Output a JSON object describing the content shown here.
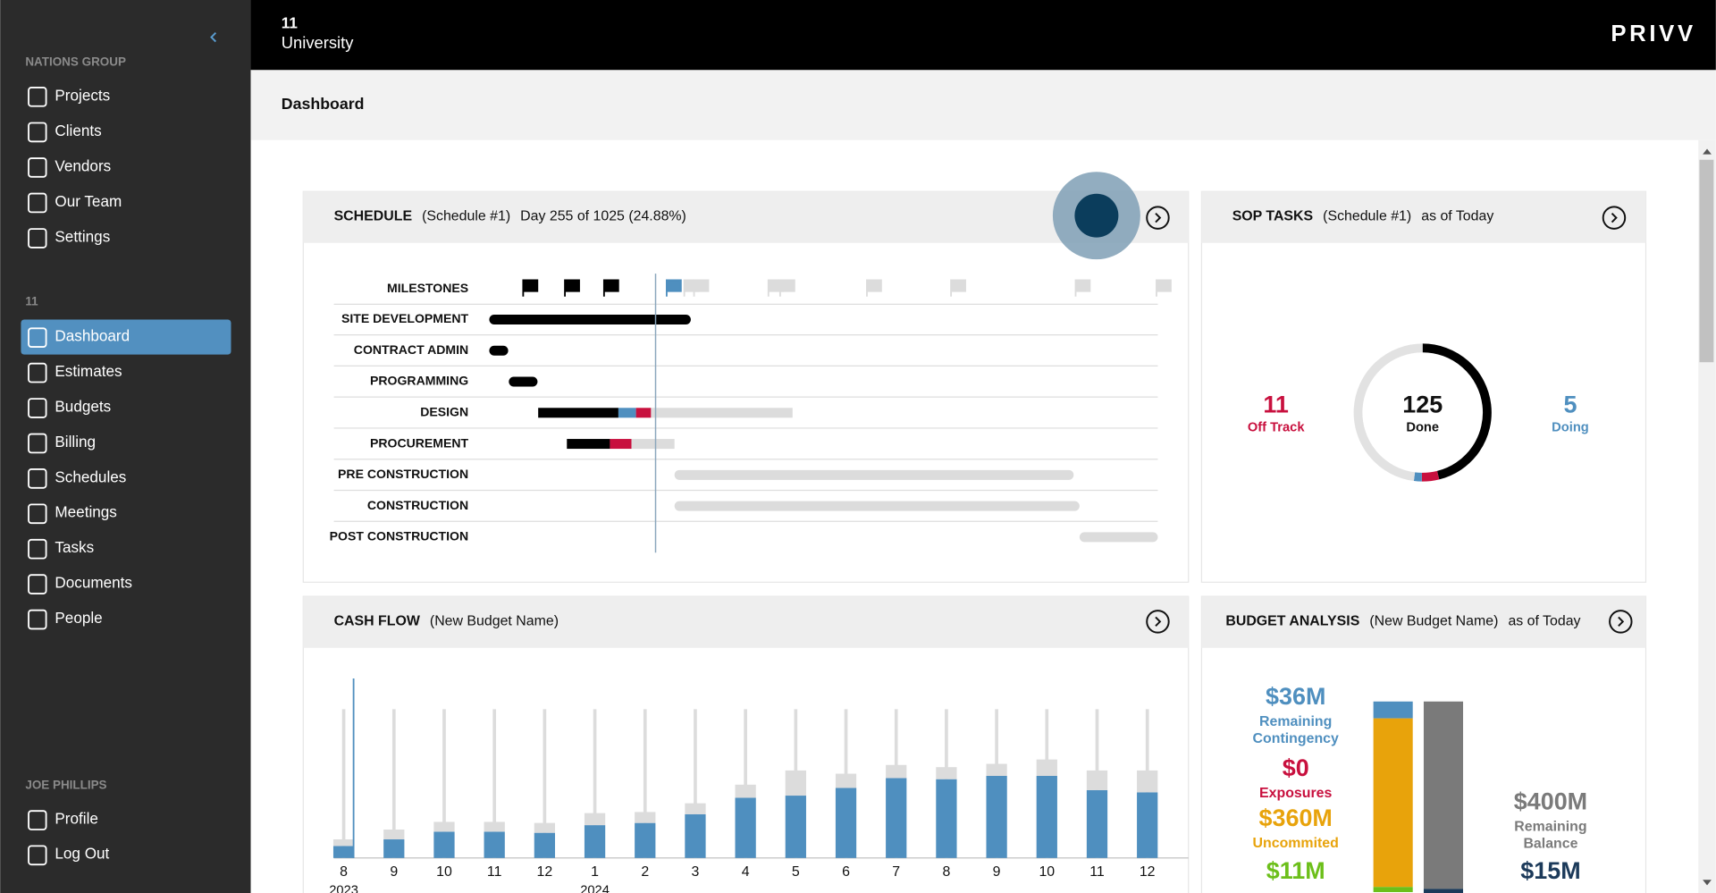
{
  "sidebar": {
    "org": "NATIONS GROUP",
    "org_items": [
      "Projects",
      "Clients",
      "Vendors",
      "Our Team",
      "Settings"
    ],
    "project": "11",
    "project_items": [
      "Dashboard",
      "Estimates",
      "Budgets",
      "Billing",
      "Schedules",
      "Meetings",
      "Tasks",
      "Documents",
      "People"
    ],
    "active_index": 0,
    "user": "JOE PHILLIPS",
    "user_items": [
      "Profile",
      "Log Out"
    ]
  },
  "header": {
    "project_number": "11",
    "project_name": "University",
    "brand": "PRIVV"
  },
  "page_title": "Dashboard",
  "schedule": {
    "title": "SCHEDULE",
    "subtitle": "(Schedule #1)",
    "status": "Day 255 of 1025 (24.88%)",
    "today_day": 255,
    "total_days": 1025,
    "colors": {
      "done": "#000000",
      "doing": "#4f8fbf",
      "off": "#c8103e",
      "todo": "#dcdcdc"
    },
    "milestone_label": "MILESTONES",
    "milestones": [
      {
        "day": 52,
        "status": "done"
      },
      {
        "day": 116,
        "status": "done"
      },
      {
        "day": 176,
        "status": "done"
      },
      {
        "day": 272,
        "status": "doing"
      },
      {
        "day": 299,
        "status": "todo"
      },
      {
        "day": 314,
        "status": "todo"
      },
      {
        "day": 428,
        "status": "todo"
      },
      {
        "day": 446,
        "status": "todo"
      },
      {
        "day": 579,
        "status": "todo"
      },
      {
        "day": 708,
        "status": "todo"
      },
      {
        "day": 899,
        "status": "todo"
      },
      {
        "day": 1023,
        "status": "todo"
      }
    ],
    "rows": [
      {
        "label": "SITE DEVELOPMENT",
        "segments": [
          {
            "start": 0,
            "end": 309,
            "status": "done"
          }
        ]
      },
      {
        "label": "CONTRACT ADMIN",
        "segments": [
          {
            "start": 0,
            "end": 29,
            "status": "done"
          }
        ]
      },
      {
        "label": "PROGRAMMING",
        "segments": [
          {
            "start": 30,
            "end": 74,
            "status": "done"
          }
        ]
      },
      {
        "label": "DESIGN",
        "segments": [
          {
            "start": 75,
            "end": 198,
            "status": "done"
          },
          {
            "start": 198,
            "end": 225,
            "status": "doing"
          },
          {
            "start": 225,
            "end": 248,
            "status": "off"
          },
          {
            "start": 248,
            "end": 465,
            "status": "todo"
          }
        ]
      },
      {
        "label": "PROCUREMENT",
        "segments": [
          {
            "start": 119,
            "end": 185,
            "status": "done"
          },
          {
            "start": 185,
            "end": 218,
            "status": "off"
          },
          {
            "start": 218,
            "end": 284,
            "status": "todo"
          }
        ]
      },
      {
        "label": "PRE CONSTRUCTION",
        "segments": [
          {
            "start": 284,
            "end": 896,
            "status": "todo"
          }
        ]
      },
      {
        "label": "CONSTRUCTION",
        "segments": [
          {
            "start": 284,
            "end": 905,
            "status": "todo"
          }
        ]
      },
      {
        "label": "POST CONSTRUCTION",
        "segments": [
          {
            "start": 905,
            "end": 1025,
            "status": "todo"
          }
        ]
      }
    ]
  },
  "sop_tasks": {
    "title": "SOP TASKS",
    "subtitle": "(Schedule #1)",
    "as_of": "as of Today",
    "segments": [
      {
        "label": "Done",
        "value": 125,
        "color": "#000000"
      },
      {
        "label": "Off Track",
        "value": 11,
        "color": "#c8103e"
      },
      {
        "label": "Doing",
        "value": 5,
        "color": "#4f8fbf"
      },
      {
        "value": 130,
        "color": "#e2e2e2"
      }
    ]
  },
  "cash_flow": {
    "title": "CASH FLOW",
    "subtitle": "(New Budget Name)",
    "months": [
      "8",
      "9",
      "10",
      "11",
      "12",
      "1",
      "2",
      "3",
      "4",
      "5",
      "6",
      "7",
      "8",
      "9",
      "10",
      "11",
      "12"
    ],
    "years": [
      "2023",
      null,
      null,
      null,
      null,
      "2024",
      null,
      null,
      null,
      null,
      null,
      null,
      null,
      null,
      null,
      null,
      null
    ],
    "ylim": [
      0,
      136
    ],
    "series": [
      {
        "color": "#4f8fbf",
        "values": [
          11,
          17,
          24,
          24,
          23,
          30,
          32,
          40,
          55,
          57,
          64,
          73,
          72,
          75,
          75,
          62,
          60
        ]
      },
      {
        "color": "#dcdcdc",
        "values": [
          6,
          9,
          9,
          9,
          9,
          11,
          10,
          10,
          12,
          23,
          13,
          12,
          11,
          11,
          15,
          18,
          20
        ]
      }
    ]
  },
  "budget_analysis": {
    "title": "BUDGET ANALYSIS",
    "subtitle": "(New Budget Name)",
    "as_of": "as of Today",
    "items": [
      {
        "label_lines": [
          "Remaining",
          "Contingency"
        ],
        "value": 36,
        "value_label": "$36M",
        "color": "#4f8fbf"
      },
      {
        "label_lines": [
          "Exposures"
        ],
        "value": 0,
        "value_label": "$0",
        "color": "#c8103e"
      },
      {
        "label_lines": [
          "Uncommited"
        ],
        "value": 360,
        "value_label": "$360M",
        "color": "#e8a30b"
      },
      {
        "value": 11,
        "value_label": "$11M",
        "color": "#6cbf1a"
      },
      {
        "label_lines": [
          "Remaining",
          "Balance"
        ],
        "value": 400,
        "value_label": "$400M",
        "color": "#7a7a7a"
      },
      {
        "value": 15,
        "value_label": "$15M",
        "color": "#1c3a5a"
      }
    ],
    "bars": [
      [
        0,
        1,
        2,
        3
      ],
      [
        4,
        5
      ]
    ]
  }
}
